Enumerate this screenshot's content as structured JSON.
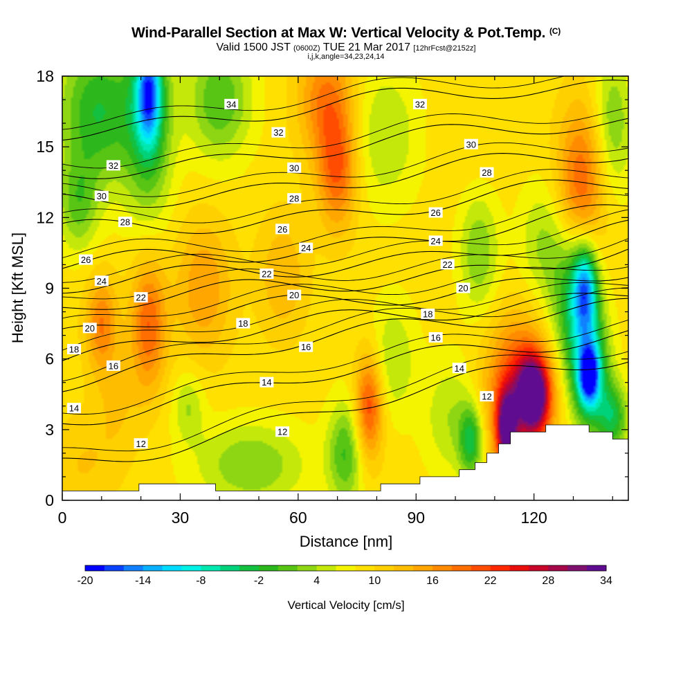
{
  "header": {
    "title": "Wind-Parallel Section at Max W: Vertical Velocity & Pot.Temp.",
    "copyright": "(C)",
    "valid_prefix": "Valid 1500 JST",
    "valid_utc": "(0600Z)",
    "valid_suffix": "TUE 21 Mar 2017",
    "forecast": "[12hrFcst@2152z]",
    "indices": "i,j,k,angle=34,23,24,14"
  },
  "chart_data": {
    "type": "heatmap",
    "xlabel": "Distance [nm]",
    "ylabel": "Height [Kft MSL]",
    "xlim": [
      0,
      144
    ],
    "ylim": [
      0,
      18
    ],
    "x_ticks": [
      0,
      30,
      60,
      90,
      120
    ],
    "y_ticks": [
      0,
      3,
      6,
      9,
      12,
      15,
      18
    ],
    "colorbar": {
      "title": "Vertical Velocity [cm/s]",
      "min": -20,
      "max": 34,
      "step": 2,
      "tick_labels": [
        "-20",
        "-14",
        "-8",
        "-2",
        "4",
        "10",
        "16",
        "22",
        "28",
        "34"
      ],
      "colors": [
        "#0000ff",
        "#0a42ff",
        "#1080ff",
        "#08b0ff",
        "#00dcff",
        "#00f2e6",
        "#00e8b0",
        "#00d27a",
        "#14c040",
        "#2cb81c",
        "#58c414",
        "#8ed614",
        "#c4e80a",
        "#f4f400",
        "#ffe000",
        "#ffd000",
        "#ffbd00",
        "#ffa600",
        "#ff8c00",
        "#ff6e00",
        "#ff4c00",
        "#ff2800",
        "#e80e0e",
        "#c8062a",
        "#a40848",
        "#801070",
        "#600c90"
      ]
    },
    "field_blobs": [
      {
        "x": 9,
        "z": 16.5,
        "rx": 10,
        "rz": 3.2,
        "w": -2
      },
      {
        "x": 4,
        "z": 12.5,
        "rx": 5,
        "rz": 2,
        "w": 2
      },
      {
        "x": 22,
        "z": 16.2,
        "rx": 6,
        "rz": 4.2,
        "w": -2
      },
      {
        "x": 22,
        "z": 17.3,
        "rx": 3,
        "rz": 2.0,
        "w": -8
      },
      {
        "x": 40,
        "z": 17,
        "rx": 8,
        "rz": 2.5,
        "w": 0
      },
      {
        "x": 67,
        "z": 17,
        "rx": 7,
        "rz": 2.5,
        "w": 18
      },
      {
        "x": 70,
        "z": 14,
        "rx": 5,
        "rz": 2.5,
        "w": 20
      },
      {
        "x": 82,
        "z": 15.5,
        "rx": 9,
        "rz": 3,
        "w": 4
      },
      {
        "x": 105,
        "z": 16,
        "rx": 10,
        "rz": 2.5,
        "w": 10
      },
      {
        "x": 132,
        "z": 13.5,
        "rx": 6,
        "rz": 3.2,
        "w": 20
      },
      {
        "x": 140,
        "z": 16,
        "rx": 5,
        "rz": 3,
        "w": 2
      },
      {
        "x": 10,
        "z": 7.5,
        "rx": 4,
        "rz": 2,
        "w": 18
      },
      {
        "x": 22,
        "z": 7.5,
        "rx": 4.5,
        "rz": 2.8,
        "w": 20
      },
      {
        "x": 36,
        "z": 9,
        "rx": 7,
        "rz": 2.8,
        "w": 16
      },
      {
        "x": 56,
        "z": 9.5,
        "rx": 6,
        "rz": 2.5,
        "w": 14
      },
      {
        "x": 78,
        "z": 4,
        "rx": 3.5,
        "rz": 2.2,
        "w": 22
      },
      {
        "x": 84,
        "z": 6,
        "rx": 6,
        "rz": 2.5,
        "w": 4
      },
      {
        "x": 99,
        "z": 3.5,
        "rx": 7,
        "rz": 2.5,
        "w": 4
      },
      {
        "x": 104,
        "z": 2.5,
        "rx": 3,
        "rz": 1.5,
        "w": -2
      },
      {
        "x": 72,
        "z": 2,
        "rx": 4.5,
        "rz": 2.2,
        "w": 0
      },
      {
        "x": 48,
        "z": 1.5,
        "rx": 14,
        "rz": 1.8,
        "w": 2
      },
      {
        "x": 32,
        "z": 4,
        "rx": 4,
        "rz": 1.5,
        "w": 4
      },
      {
        "x": 106,
        "z": 10.5,
        "rx": 5,
        "rz": 2.5,
        "w": 2
      },
      {
        "x": 122,
        "z": 11,
        "rx": 6,
        "rz": 2.5,
        "w": 4
      },
      {
        "x": 130,
        "z": 8.5,
        "rx": 6,
        "rz": 3,
        "w": -2
      },
      {
        "x": 133,
        "z": 9,
        "rx": 3,
        "rz": 1.8,
        "w": -8
      },
      {
        "x": 134,
        "z": 5.5,
        "rx": 5,
        "rz": 2.5,
        "w": -6
      },
      {
        "x": 134,
        "z": 5.3,
        "rx": 2.5,
        "rz": 1.2,
        "w": -10
      },
      {
        "x": 140,
        "z": 3.5,
        "rx": 4,
        "rz": 1.5,
        "w": -2
      },
      {
        "x": 116,
        "z": 4.5,
        "rx": 8,
        "rz": 3,
        "w": 24
      },
      {
        "x": 120,
        "z": 4.5,
        "rx": 4,
        "rz": 1.6,
        "w": 32
      },
      {
        "x": 113,
        "z": 3,
        "rx": 2.5,
        "rz": 1.5,
        "w": 30
      },
      {
        "x": 5,
        "z": 1.5,
        "rx": 8,
        "rz": 2,
        "w": 12
      },
      {
        "x": 14,
        "z": 4,
        "rx": 6,
        "rz": 2.5,
        "w": 12
      }
    ],
    "theta_contours": [
      {
        "level": 12,
        "base": 1.6,
        "slope": 0.032
      },
      {
        "level": 14,
        "base": 3.6,
        "slope": 0.025
      },
      {
        "level": 16,
        "base": 5.2,
        "slope": 0.023
      },
      {
        "level": 18,
        "base": 6.1,
        "slope": 0.02
      },
      {
        "level": 20,
        "base": 7.0,
        "slope": 0.02
      },
      {
        "level": 22,
        "base": 8.0,
        "slope": 0.018
      },
      {
        "level": 24,
        "base": 8.9,
        "slope": 0.017
      },
      {
        "level": 26,
        "base": 9.8,
        "slope": 0.016
      },
      {
        "level": 28,
        "base": 11.3,
        "slope": 0.014
      },
      {
        "level": 30,
        "base": 12.6,
        "slope": 0.014
      },
      {
        "level": 32,
        "base": 14.0,
        "slope": 0.014
      },
      {
        "level": 34,
        "base": 15.8,
        "slope": 0.013
      }
    ],
    "contour_labels": [
      {
        "text": "34",
        "x": 43,
        "z": 16.8
      },
      {
        "text": "32",
        "x": 13,
        "z": 14.2
      },
      {
        "text": "32",
        "x": 55,
        "z": 15.6
      },
      {
        "text": "32",
        "x": 91,
        "z": 16.8
      },
      {
        "text": "30",
        "x": 10,
        "z": 12.9
      },
      {
        "text": "30",
        "x": 59,
        "z": 14.1
      },
      {
        "text": "30",
        "x": 104,
        "z": 15.1
      },
      {
        "text": "28",
        "x": 16,
        "z": 11.8
      },
      {
        "text": "28",
        "x": 59,
        "z": 12.8
      },
      {
        "text": "28",
        "x": 108,
        "z": 13.9
      },
      {
        "text": "26",
        "x": 6,
        "z": 10.2
      },
      {
        "text": "26",
        "x": 56,
        "z": 11.5
      },
      {
        "text": "26",
        "x": 95,
        "z": 12.2
      },
      {
        "text": "24",
        "x": 10,
        "z": 9.3
      },
      {
        "text": "24",
        "x": 62,
        "z": 10.7
      },
      {
        "text": "24",
        "x": 95,
        "z": 11.0
      },
      {
        "text": "22",
        "x": 20,
        "z": 8.6
      },
      {
        "text": "22",
        "x": 52,
        "z": 9.6
      },
      {
        "text": "22",
        "x": 98,
        "z": 10.0
      },
      {
        "text": "20",
        "x": 7,
        "z": 7.3
      },
      {
        "text": "20",
        "x": 59,
        "z": 8.7
      },
      {
        "text": "20",
        "x": 102,
        "z": 9.0
      },
      {
        "text": "18",
        "x": 3,
        "z": 6.4
      },
      {
        "text": "18",
        "x": 46,
        "z": 7.5
      },
      {
        "text": "18",
        "x": 93,
        "z": 7.9
      },
      {
        "text": "16",
        "x": 13,
        "z": 5.7
      },
      {
        "text": "16",
        "x": 62,
        "z": 6.5
      },
      {
        "text": "16",
        "x": 95,
        "z": 6.9
      },
      {
        "text": "14",
        "x": 3,
        "z": 3.9
      },
      {
        "text": "14",
        "x": 52,
        "z": 5.0
      },
      {
        "text": "14",
        "x": 101,
        "z": 5.6
      },
      {
        "text": "12",
        "x": 20,
        "z": 2.4
      },
      {
        "text": "12",
        "x": 56,
        "z": 2.9
      },
      {
        "text": "12",
        "x": 108,
        "z": 4.4
      }
    ],
    "terrain": [
      [
        0,
        0.4
      ],
      [
        19.5,
        0.4
      ],
      [
        19.5,
        0.7
      ],
      [
        39,
        0.7
      ],
      [
        39,
        0.4
      ],
      [
        81,
        0.4
      ],
      [
        81,
        0.7
      ],
      [
        91,
        0.7
      ],
      [
        91,
        1.0
      ],
      [
        101,
        1.0
      ],
      [
        101,
        1.3
      ],
      [
        105,
        1.3
      ],
      [
        105,
        1.6
      ],
      [
        108,
        1.6
      ],
      [
        108,
        2.0
      ],
      [
        111,
        2.0
      ],
      [
        111,
        2.4
      ],
      [
        114,
        2.4
      ],
      [
        114,
        2.9
      ],
      [
        123,
        2.9
      ],
      [
        123,
        3.2
      ],
      [
        134,
        3.2
      ],
      [
        134,
        2.9
      ],
      [
        140,
        2.9
      ],
      [
        140,
        2.6
      ],
      [
        144,
        2.6
      ]
    ]
  }
}
